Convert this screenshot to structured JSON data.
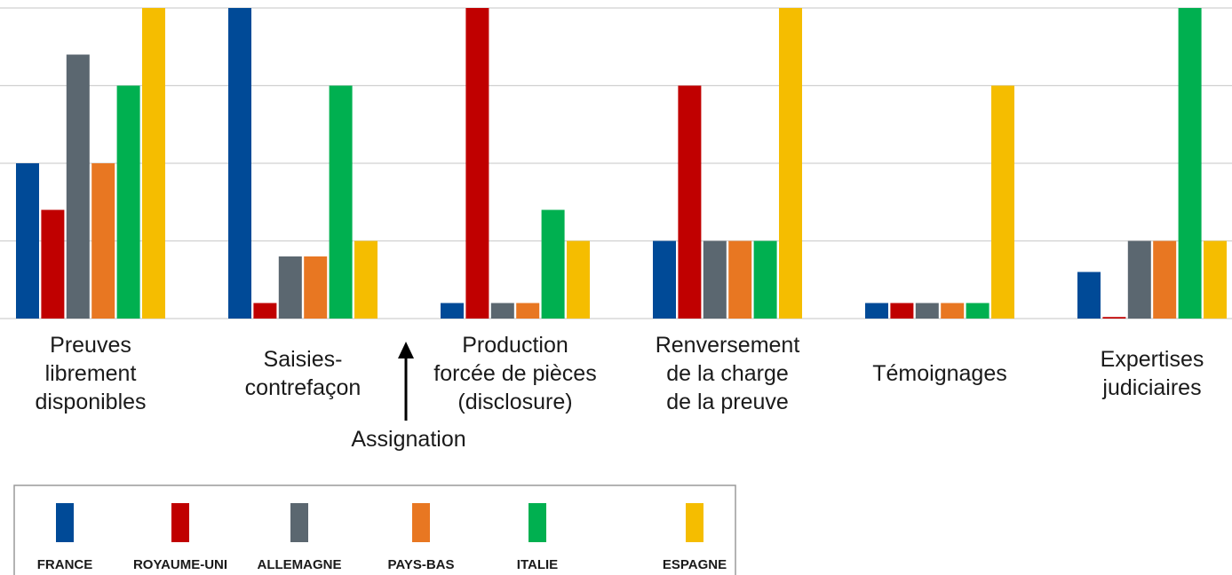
{
  "chart_data": {
    "type": "bar",
    "categories": [
      [
        "Preuves",
        "librement",
        "disponibles"
      ],
      [
        "Saisies-",
        "contrefaçon"
      ],
      [
        "Production",
        "forcée de pièces",
        "(disclosure)"
      ],
      [
        "Renversement",
        "de la charge",
        "de la preuve"
      ],
      [
        "Témoignages"
      ],
      [
        "Expertises",
        "judiciaires"
      ]
    ],
    "series": [
      {
        "name": "FRANCE",
        "color": "#004A97",
        "values": [
          2.0,
          4.0,
          0.2,
          1.0,
          0.2,
          0.6
        ]
      },
      {
        "name": "ROYAUME-UNI",
        "color": "#C00000",
        "values": [
          1.4,
          0.2,
          4.0,
          3.0,
          0.2,
          0.02
        ]
      },
      {
        "name": "ALLEMAGNE",
        "color": "#5B6770",
        "values": [
          3.4,
          0.8,
          0.2,
          1.0,
          0.2,
          1.0
        ]
      },
      {
        "name": "PAYS-BAS",
        "color": "#E87722",
        "values": [
          2.0,
          0.8,
          0.2,
          1.0,
          0.2,
          1.0
        ]
      },
      {
        "name": "ITALIE",
        "color": "#00B050",
        "values": [
          3.0,
          3.0,
          1.4,
          1.0,
          0.2,
          4.0
        ]
      },
      {
        "name": "ESPAGNE",
        "color": "#F5BD00",
        "values": [
          4.0,
          1.0,
          1.0,
          4.0,
          3.0,
          1.0
        ]
      }
    ],
    "ylim": [
      0,
      4
    ],
    "grid": true,
    "annotation": {
      "text": "Assignation",
      "between": [
        "Saisies-contrefaçon",
        "Production forcée de pièces (disclosure)"
      ]
    },
    "legend_position": "bottom-left"
  }
}
